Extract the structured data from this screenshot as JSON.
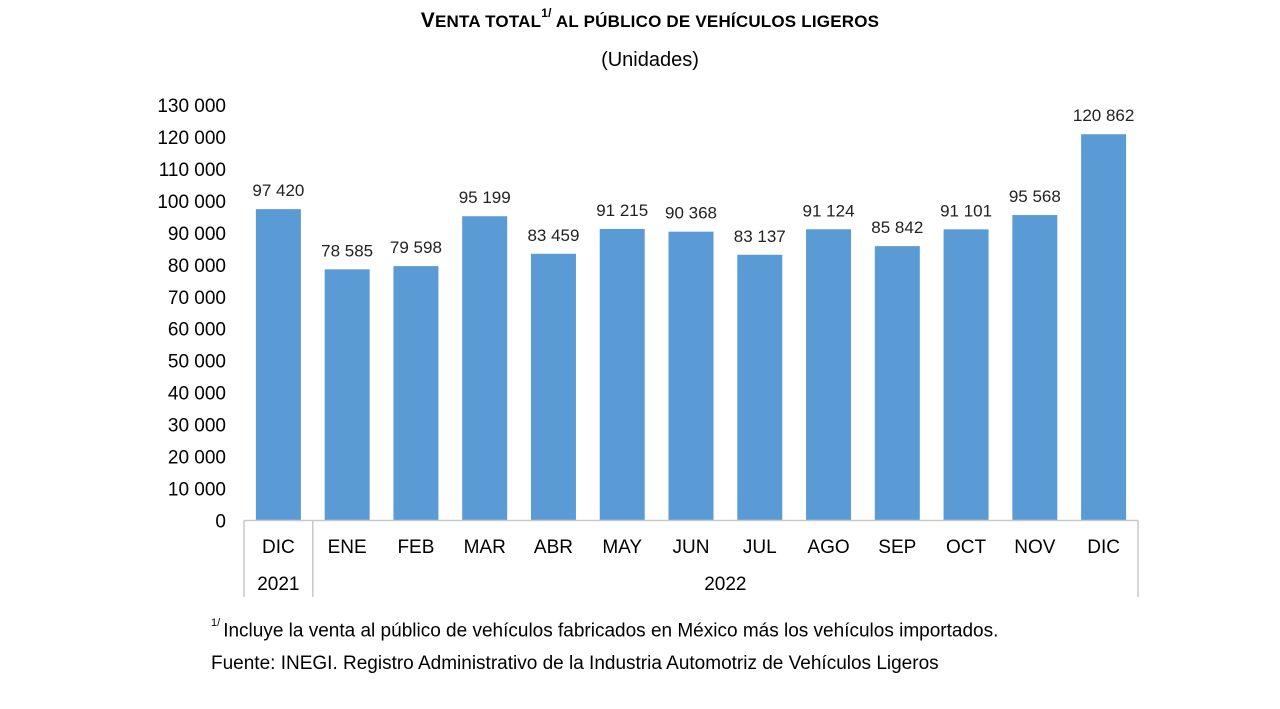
{
  "chart_data": {
    "type": "bar",
    "title_part1": "V",
    "title_part2": "ENTA TOTAL",
    "title_sup": "1/",
    "title_part3": " AL PÚBLICO DE VEHÍCULOS LIGEROS",
    "subtitle": "(Unidades)",
    "categories": [
      "DIC",
      "ENE",
      "FEB",
      "MAR",
      "ABR",
      "MAY",
      "JUN",
      "JUL",
      "AGO",
      "SEP",
      "OCT",
      "NOV",
      "DIC"
    ],
    "year_groups": [
      {
        "label": "2021",
        "count": 1
      },
      {
        "label": "2022",
        "count": 12
      }
    ],
    "values": [
      97420,
      78585,
      79598,
      95199,
      83459,
      91215,
      90368,
      83137,
      91124,
      85842,
      91101,
      95568,
      120862
    ],
    "value_labels": [
      "97 420",
      "78 585",
      "79 598",
      "95 199",
      "83 459",
      "91 215",
      "90 368",
      "83 137",
      "91 124",
      "85 842",
      "91 101",
      "95 568",
      "120 862"
    ],
    "ylim": [
      0,
      130000
    ],
    "yticks": [
      0,
      10000,
      20000,
      30000,
      40000,
      50000,
      60000,
      70000,
      80000,
      90000,
      100000,
      110000,
      120000,
      130000
    ],
    "ytick_labels": [
      "0",
      "10 000",
      "20 000",
      "30 000",
      "40 000",
      "50 000",
      "60 000",
      "70 000",
      "80 000",
      "90 000",
      "100 000",
      "110 000",
      "120 000",
      "130 000"
    ],
    "grid": false,
    "legend": "none",
    "bar_color": "#5b9bd5"
  },
  "footnote_marker": "1/",
  "footnote_text": "Incluye la venta al público de vehículos fabricados en México más los vehículos importados.",
  "source_text": "Fuente: INEGI. Registro Administrativo de la Industria Automotriz de Vehículos Ligeros"
}
